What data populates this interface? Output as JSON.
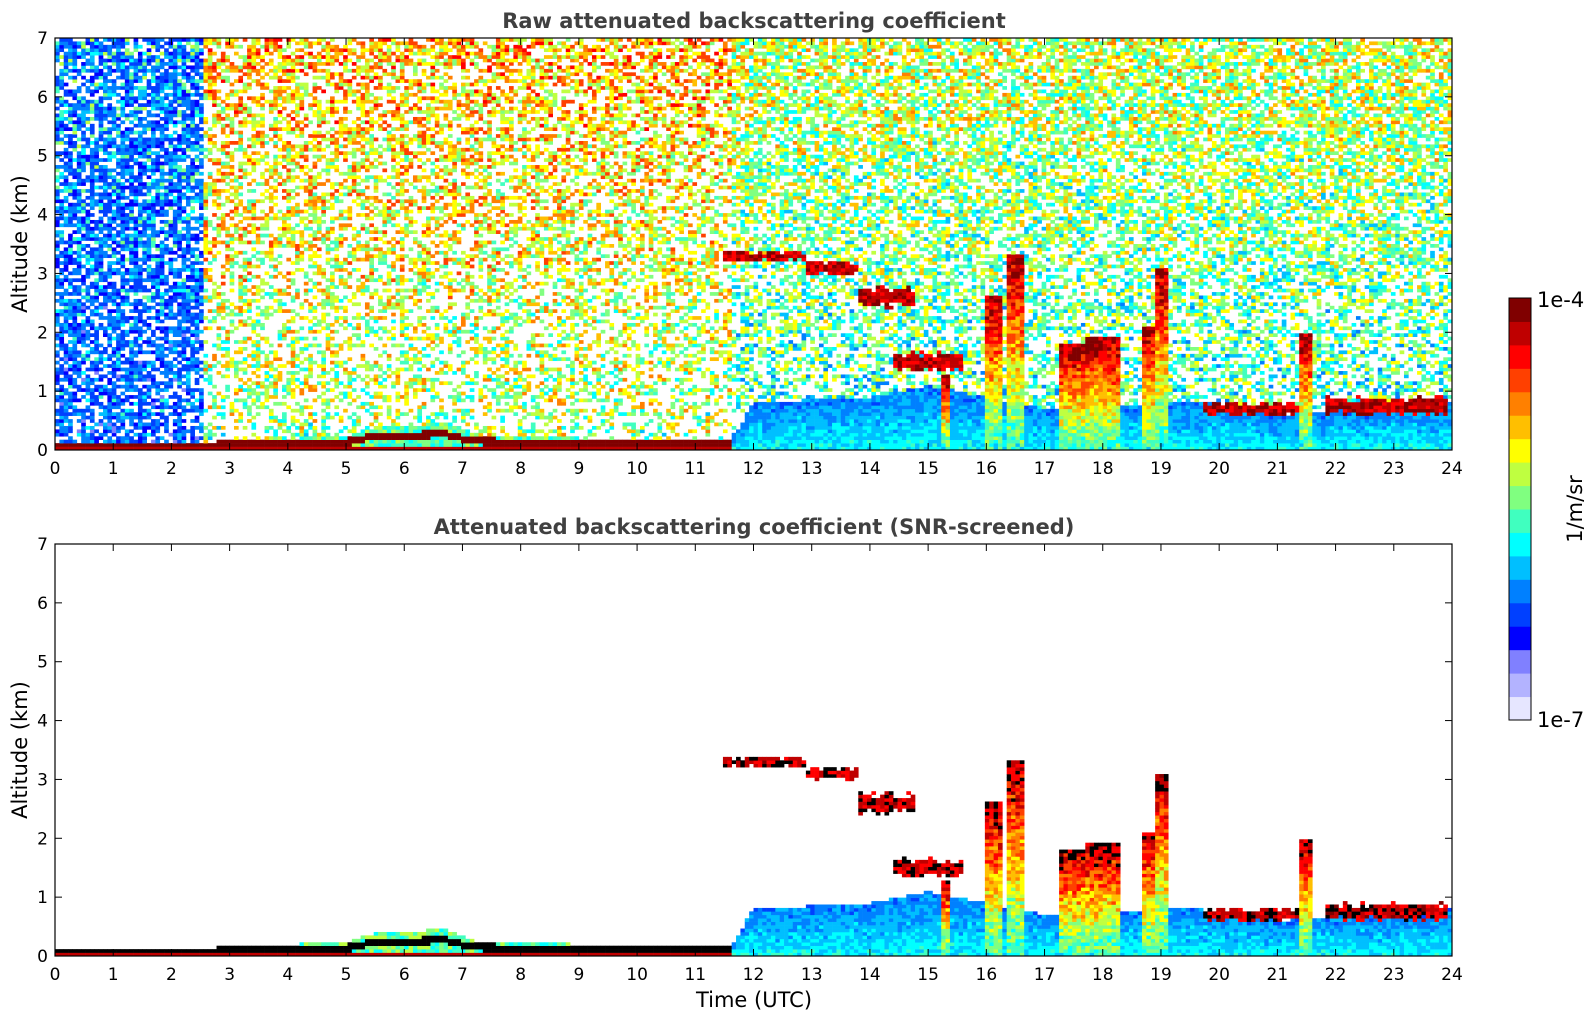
{
  "chart_data": [
    {
      "type": "heatmap",
      "title": "Raw attenuated backscattering coefficient",
      "xlabel": "",
      "ylabel": "Altitude (km)",
      "xlim": [
        0,
        24
      ],
      "ylim": [
        0,
        7
      ],
      "xticks": [
        "0",
        "1",
        "2",
        "3",
        "4",
        "5",
        "6",
        "7",
        "8",
        "9",
        "10",
        "11",
        "12",
        "13",
        "14",
        "15",
        "16",
        "17",
        "18",
        "19",
        "20",
        "21",
        "22",
        "23",
        "24"
      ],
      "yticks": [
        "0",
        "1",
        "2",
        "3",
        "4",
        "5",
        "6",
        "7"
      ],
      "variant": "raw",
      "features": {
        "noise_regions": [
          {
            "t0": 0,
            "t1": 2.55,
            "level": 0.28,
            "density": 0.55
          },
          {
            "t0": 2.55,
            "t1": 11.6,
            "level": 0.55,
            "density": 0.6
          },
          {
            "t0": 11.6,
            "t1": 24,
            "level": 0.45,
            "density": 0.7
          }
        ],
        "boundary_layer": [
          {
            "t": 0,
            "h": 0.12
          },
          {
            "t": 2.6,
            "h": 0.12
          },
          {
            "t": 3,
            "h": 0.18
          },
          {
            "t": 5,
            "h": 0.22
          },
          {
            "t": 5.5,
            "h": 0.4
          },
          {
            "t": 6.7,
            "h": 0.45
          },
          {
            "t": 7.2,
            "h": 0.25
          },
          {
            "t": 9,
            "h": 0.2
          },
          {
            "t": 11.6,
            "h": 0.15
          },
          {
            "t": 12,
            "h": 0.8
          },
          {
            "t": 14,
            "h": 0.9
          },
          {
            "t": 15,
            "h": 1.1
          },
          {
            "t": 16,
            "h": 0.9
          },
          {
            "t": 17,
            "h": 0.7
          },
          {
            "t": 19.2,
            "h": 0.8
          },
          {
            "t": 19.6,
            "h": 0.8
          },
          {
            "t": 21,
            "h": 0.6
          },
          {
            "t": 24,
            "h": 0.8
          }
        ],
        "cloud_layers": [
          {
            "t0": 11.5,
            "t1": 12.9,
            "h": 3.3,
            "thick": 0.15
          },
          {
            "t0": 12.9,
            "t1": 13.8,
            "h": 3.1,
            "thick": 0.2
          },
          {
            "t0": 13.8,
            "t1": 14.8,
            "h": 2.6,
            "thick": 0.3
          },
          {
            "t0": 14.4,
            "t1": 15.6,
            "h": 1.5,
            "thick": 0.25
          },
          {
            "t0": 19.7,
            "t1": 21.4,
            "h": 0.7,
            "thick": 0.2
          },
          {
            "t0": 21.8,
            "t1": 23.9,
            "h": 0.75,
            "thick": 0.25
          }
        ],
        "convective_columns": [
          {
            "t": 15.3,
            "top": 1.3,
            "w": 0.15
          },
          {
            "t": 16.15,
            "top": 2.6,
            "w": 0.3
          },
          {
            "t": 16.5,
            "top": 3.3,
            "w": 0.25
          },
          {
            "t": 17.5,
            "top": 1.8,
            "w": 0.5
          },
          {
            "t": 18.0,
            "top": 1.9,
            "w": 0.6
          },
          {
            "t": 18.8,
            "top": 2.1,
            "w": 0.2
          },
          {
            "t": 19.0,
            "top": 3.1,
            "w": 0.25
          },
          {
            "t": 21.5,
            "top": 2.0,
            "w": 0.2
          }
        ]
      }
    },
    {
      "type": "heatmap",
      "title": "Attenuated backscattering coefficient (SNR-screened)",
      "xlabel": "Time (UTC)",
      "ylabel": "Altitude (km)",
      "xlim": [
        0,
        24
      ],
      "ylim": [
        0,
        7
      ],
      "xticks": [
        "0",
        "1",
        "2",
        "3",
        "4",
        "5",
        "6",
        "7",
        "8",
        "9",
        "10",
        "11",
        "12",
        "13",
        "14",
        "15",
        "16",
        "17",
        "18",
        "19",
        "20",
        "21",
        "22",
        "23",
        "24"
      ],
      "yticks": [
        "0",
        "1",
        "2",
        "3",
        "4",
        "5",
        "6",
        "7"
      ],
      "variant": "screened"
    }
  ],
  "colorbar": {
    "label": "1/m/sr",
    "min_label": "1e-7",
    "max_label": "1e-4",
    "colors": [
      "#e6e6ff",
      "#b3b3ff",
      "#8080ff",
      "#0000ff",
      "#0040ff",
      "#0080ff",
      "#00bfff",
      "#00ffff",
      "#40ffbf",
      "#80ff80",
      "#bfff40",
      "#ffff00",
      "#ffbf00",
      "#ff8000",
      "#ff4000",
      "#ff0000",
      "#bf0000",
      "#800000"
    ]
  }
}
